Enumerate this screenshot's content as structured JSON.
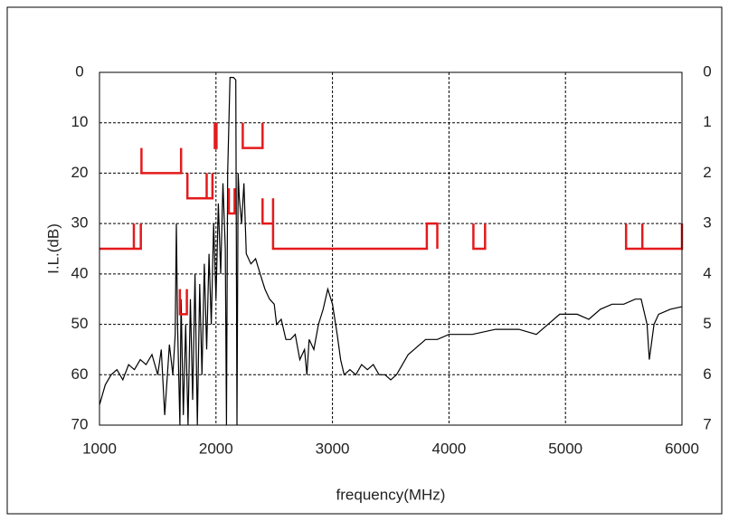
{
  "chart_data": {
    "type": "line",
    "xlabel": "frequency(MHz)",
    "ylabel": "I.L.(dB)",
    "xlim": [
      1000,
      6000
    ],
    "xticks": [
      1000,
      2000,
      3000,
      4000,
      5000,
      6000
    ],
    "ylim": [
      70,
      0
    ],
    "yticks": [
      0,
      10,
      20,
      30,
      40,
      50,
      60,
      70
    ],
    "y2lim": [
      7,
      0
    ],
    "y2ticks": [
      0,
      1,
      2,
      3,
      4,
      5,
      6,
      7
    ],
    "grid": true,
    "series": [
      {
        "color": "#000000",
        "x": [
          1000,
          1050,
          1100,
          1150,
          1200,
          1250,
          1300,
          1350,
          1400,
          1450,
          1500,
          1530,
          1560,
          1600,
          1630,
          1650,
          1660,
          1670,
          1690,
          1700,
          1720,
          1740,
          1760,
          1780,
          1800,
          1820,
          1840,
          1860,
          1880,
          1900,
          1920,
          1940,
          1960,
          1980,
          2000,
          2020,
          2040,
          2060,
          2080,
          2090,
          2100,
          2120,
          2150,
          2170,
          2180,
          2190,
          2200,
          2220,
          2240,
          2260,
          2300,
          2340,
          2380,
          2420,
          2460,
          2500,
          2520,
          2560,
          2600,
          2640,
          2680,
          2720,
          2760,
          2780,
          2800,
          2840,
          2880,
          2920,
          2960,
          3000,
          3040,
          3070,
          3100,
          3150,
          3200,
          3250,
          3300,
          3350,
          3400,
          3450,
          3500,
          3550,
          3600,
          3650,
          3700,
          3800,
          3900,
          4000,
          4200,
          4400,
          4600,
          4750,
          4850,
          4950,
          5100,
          5200,
          5300,
          5400,
          5500,
          5600,
          5650,
          5700,
          5720,
          5760,
          5800,
          5900,
          6000
        ],
        "values": [
          66,
          62,
          60,
          59,
          61,
          58,
          59,
          57,
          58,
          56,
          60,
          55,
          68,
          54,
          60,
          52,
          30,
          50,
          70,
          45,
          68,
          50,
          70,
          45,
          65,
          40,
          70,
          42,
          60,
          38,
          55,
          36,
          50,
          30,
          45,
          26,
          40,
          22,
          35,
          70,
          20,
          1,
          1,
          1.5,
          70,
          20,
          25,
          30,
          22,
          36,
          38,
          37,
          40,
          43,
          45,
          46,
          50,
          49,
          53,
          53,
          52,
          57,
          55,
          60,
          53,
          55,
          50,
          47,
          43,
          46,
          52,
          57,
          60,
          59,
          60,
          58,
          59,
          58,
          60,
          60,
          61,
          60,
          58,
          56,
          55,
          53,
          53,
          52,
          52,
          51,
          51,
          52,
          50,
          48,
          48,
          49,
          47,
          46,
          46,
          45,
          45,
          50,
          57,
          50,
          48,
          47,
          46.5
        ]
      },
      {
        "color": "#e41a1c",
        "x": [
          1000,
          1295,
          1295,
          1295,
          1355,
          1355,
          null,
          1360,
          1360,
          1700,
          1700,
          null,
          1755,
          1755,
          1920,
          1920,
          1920,
          1970,
          1970,
          null,
          1990,
          1990,
          2005,
          2005,
          null,
          2110,
          2110,
          2160,
          2160,
          null,
          2230,
          2230,
          2400,
          2400,
          null,
          2400,
          2400,
          2490,
          2490,
          2490,
          3810,
          3810,
          3900,
          3900,
          null,
          4210,
          4210,
          4310,
          4310,
          null,
          5520,
          5520,
          5660,
          5660,
          5660,
          6000,
          6000,
          null,
          1690,
          1690,
          1750,
          1750
        ],
        "values": [
          35,
          35,
          30,
          35,
          35,
          30,
          null,
          15,
          20,
          20,
          15,
          null,
          20,
          25,
          25,
          20,
          25,
          25,
          20,
          null,
          10,
          15,
          15,
          10,
          null,
          23,
          28,
          28,
          23,
          null,
          10,
          15,
          15,
          10,
          null,
          25,
          30,
          30,
          25,
          35,
          35,
          30,
          30,
          35,
          null,
          30,
          35,
          35,
          30,
          null,
          30,
          35,
          35,
          30,
          35,
          35,
          30,
          null,
          43,
          48,
          48,
          43
        ]
      }
    ]
  }
}
